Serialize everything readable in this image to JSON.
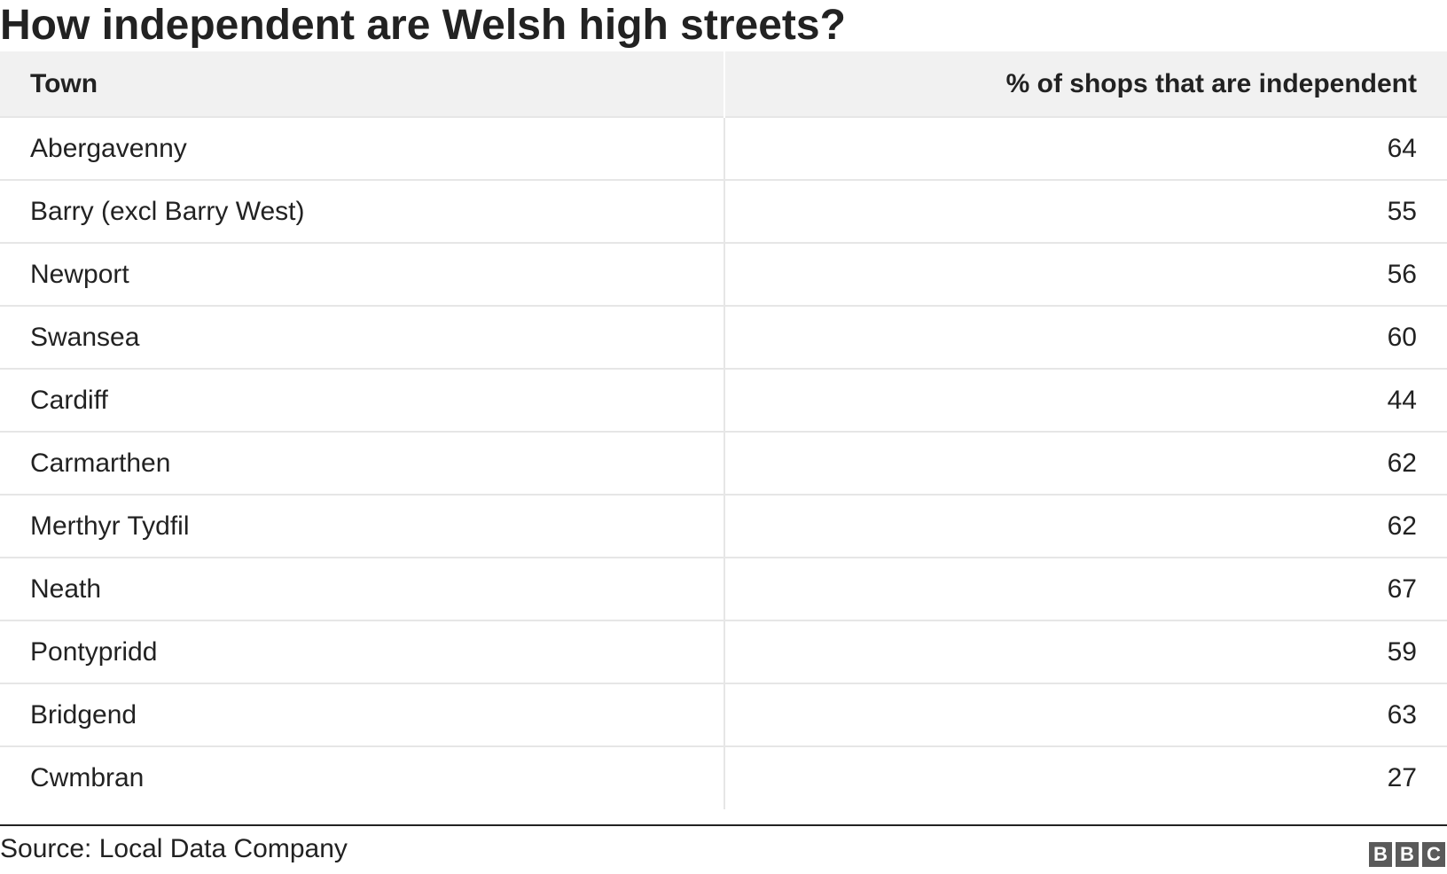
{
  "title": "How independent are Welsh high streets?",
  "source": "Source: Local Data Company",
  "logo": [
    "B",
    "B",
    "C"
  ],
  "chart_data": {
    "type": "table",
    "title": "How independent are Welsh high streets?",
    "columns": [
      "Town",
      "% of shops that are independent"
    ],
    "rows": [
      [
        "Abergavenny",
        "64"
      ],
      [
        "Barry (excl Barry West)",
        "55"
      ],
      [
        "Newport",
        "56"
      ],
      [
        "Swansea",
        "60"
      ],
      [
        "Cardiff",
        "44"
      ],
      [
        "Carmarthen",
        "62"
      ],
      [
        "Merthyr Tydfil",
        "62"
      ],
      [
        "Neath",
        "67"
      ],
      [
        "Pontypridd",
        "59"
      ],
      [
        "Bridgend",
        "63"
      ],
      [
        "Cwmbran",
        "27"
      ]
    ]
  }
}
